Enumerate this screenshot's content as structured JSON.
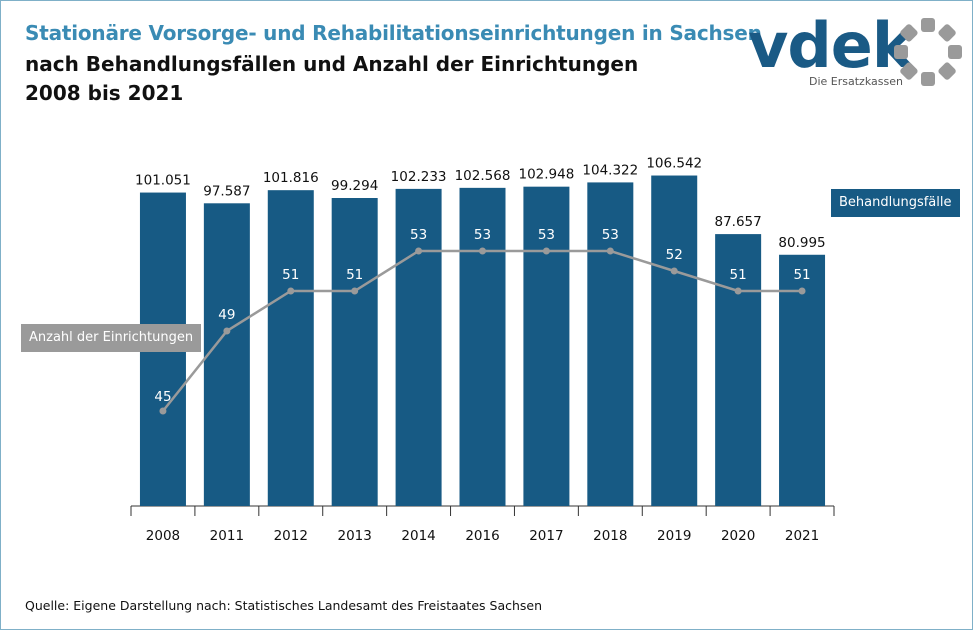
{
  "header": {
    "title": "Stationäre Vorsorge- und Rehabilitationseinrichtungen in Sachsen",
    "subtitle": "nach Behandlungsfällen und Anzahl der Einrichtungen",
    "period": "2008 bis 2021"
  },
  "logo": {
    "text": "vdek",
    "tagline": "Die Ersatzkassen"
  },
  "colors": {
    "bar": "#175a84",
    "line": "#9a9a9a",
    "title_blue": "#3a8bb4"
  },
  "chart_data": {
    "type": "bar",
    "title": "Stationäre Vorsorge- und Rehabilitationseinrichtungen in Sachsen",
    "categories": [
      "2008",
      "2011",
      "2012",
      "2013",
      "2014",
      "2016",
      "2017",
      "2018",
      "2019",
      "2020",
      "2021"
    ],
    "series": [
      {
        "name": "Behandlungsfälle",
        "type": "bar",
        "values": [
          101051,
          97587,
          101816,
          99294,
          102233,
          102568,
          102948,
          104322,
          106542,
          87657,
          80995
        ],
        "labels": [
          "101.051",
          "97.587",
          "101.816",
          "99.294",
          "102.233",
          "102.568",
          "102.948",
          "104.322",
          "106.542",
          "87.657",
          "80.995"
        ],
        "ylim": [
          0,
          108000
        ]
      },
      {
        "name": "Anzahl der Einrichtungen",
        "type": "line",
        "values": [
          45,
          49,
          51,
          51,
          53,
          53,
          53,
          53,
          52,
          51,
          51
        ],
        "labels": [
          "45",
          "49",
          "51",
          "51",
          "53",
          "53",
          "53",
          "53",
          "52",
          "51",
          "51"
        ],
        "ylim": [
          30,
          60
        ]
      }
    ],
    "legend": {
      "bars": "Behandlungsfälle",
      "line": "Anzahl der Einrichtungen"
    },
    "xlabel": "",
    "ylabel": ""
  },
  "footer": {
    "source": "Quelle: Eigene Darstellung nach: Statistisches Landesamt des Freistaates Sachsen"
  }
}
